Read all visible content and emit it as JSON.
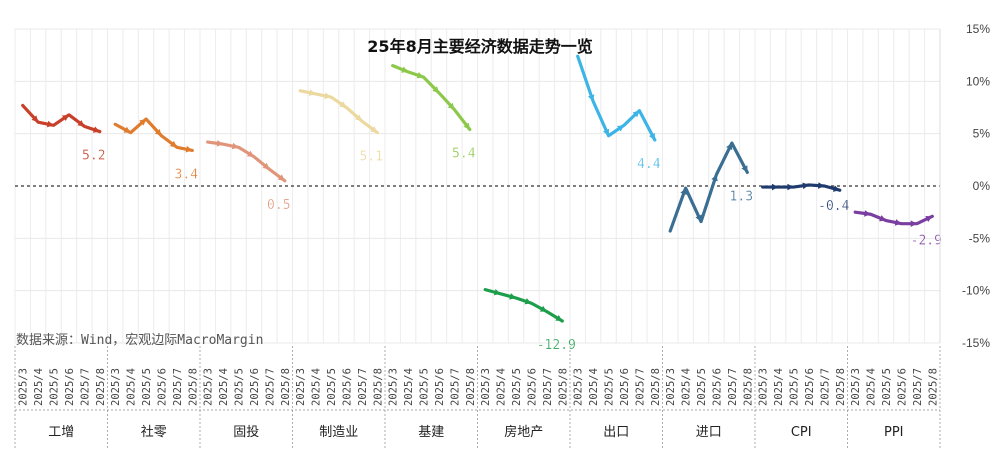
{
  "chart_data": {
    "type": "line",
    "title": "25年8月主要经济数据走势一览",
    "source": "数据来源：Wind，宏观边际MacroMargin",
    "y_axis": {
      "position": "right",
      "ylim": [
        -15,
        15
      ],
      "ticks": [
        15,
        10,
        5,
        0,
        -5,
        -10,
        -15
      ],
      "tick_labels": [
        "15%",
        "10%",
        "5%",
        "0%",
        "-5%",
        "-10%",
        "-15%"
      ]
    },
    "x_tick_labels": [
      "2025/3",
      "2025/4",
      "2025/5",
      "2025/6",
      "2025/7",
      "2025/8"
    ],
    "zero_line": "dashed",
    "grid": true,
    "groups": [
      {
        "name": "工增",
        "color": "#c8402a",
        "values": [
          7.7,
          6.1,
          5.8,
          6.8,
          5.7,
          5.2
        ],
        "end_label": "5.2"
      },
      {
        "name": "社零",
        "color": "#e07c2e",
        "values": [
          5.9,
          5.1,
          6.4,
          4.8,
          3.7,
          3.4
        ],
        "end_label": "3.4"
      },
      {
        "name": "固投",
        "color": "#e0957a",
        "values": [
          4.2,
          4.0,
          3.7,
          2.8,
          1.6,
          0.5
        ],
        "end_label": "0.5"
      },
      {
        "name": "制造业",
        "color": "#ecd9a0",
        "values": [
          9.1,
          8.8,
          8.5,
          7.5,
          6.2,
          5.1
        ],
        "end_label": "5.1"
      },
      {
        "name": "基建",
        "color": "#8cc84a",
        "values": [
          11.5,
          10.9,
          10.4,
          8.9,
          7.3,
          5.4
        ],
        "end_label": "5.4"
      },
      {
        "name": "房地产",
        "color": "#1d9e4a",
        "values": [
          -9.9,
          -10.3,
          -10.7,
          -11.2,
          -12.0,
          -12.9
        ],
        "end_label": "-12.9"
      },
      {
        "name": "出口",
        "color": "#3cb4e6",
        "values": [
          12.4,
          8.1,
          4.8,
          5.8,
          7.2,
          4.4
        ],
        "end_label": "4.4"
      },
      {
        "name": "进口",
        "color": "#3a6e92",
        "values": [
          -4.3,
          -0.2,
          -3.4,
          1.1,
          4.1,
          1.3
        ],
        "end_label": "1.3"
      },
      {
        "name": "CPI",
        "color": "#1f3b6e",
        "values": [
          -0.1,
          -0.1,
          -0.1,
          0.1,
          0.0,
          -0.4
        ],
        "end_label": "-0.4"
      },
      {
        "name": "PPI",
        "color": "#7a3ea0",
        "values": [
          -2.5,
          -2.7,
          -3.3,
          -3.6,
          -3.6,
          -2.9
        ],
        "end_label": "-2.9"
      }
    ]
  }
}
